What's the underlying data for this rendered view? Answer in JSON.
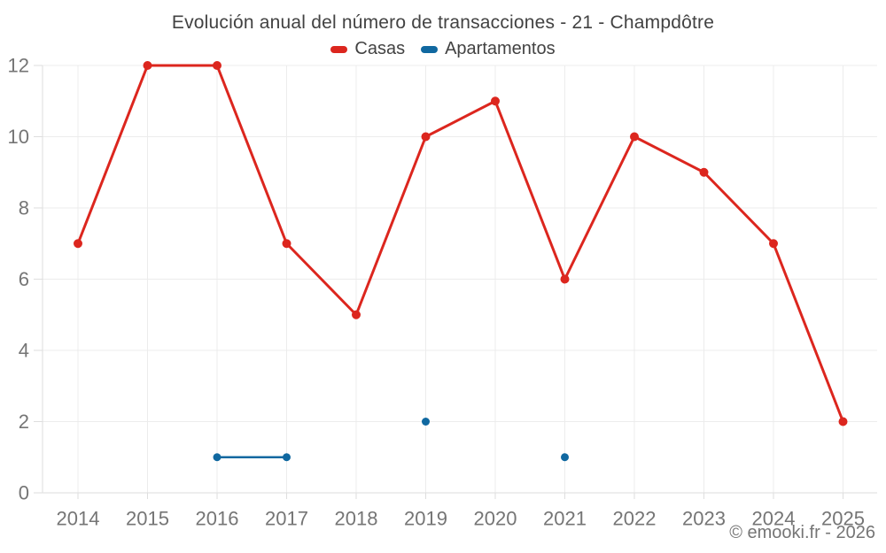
{
  "chart": {
    "title": "Evolución anual del número de transacciones - 21 - Champdôtre",
    "copyright": "© emooki.fr - 2026"
  },
  "chart_data": {
    "type": "line",
    "title": "Evolución anual del número de transacciones - 21 - Champdôtre",
    "categories": [
      "2014",
      "2015",
      "2016",
      "2017",
      "2018",
      "2019",
      "2020",
      "2021",
      "2022",
      "2023",
      "2024",
      "2025"
    ],
    "series": [
      {
        "name": "Casas",
        "color": "#dc261e",
        "values": [
          7,
          12,
          12,
          7,
          5,
          10,
          11,
          6,
          10,
          9,
          7,
          2
        ]
      },
      {
        "name": "Apartamentos",
        "color": "#1068a0",
        "values": [
          null,
          null,
          1,
          1,
          null,
          2,
          null,
          1,
          null,
          null,
          null,
          null
        ]
      }
    ],
    "xlabel": "",
    "ylabel": "",
    "ylim": [
      0,
      12
    ],
    "yticks": [
      0,
      2,
      4,
      6,
      8,
      10,
      12
    ],
    "grid": true,
    "legend_position": "top",
    "colors": {
      "grid_line": "#ececec",
      "axis_line": "#dedede",
      "axis_label": "#757575",
      "title_text": "#424242"
    }
  }
}
